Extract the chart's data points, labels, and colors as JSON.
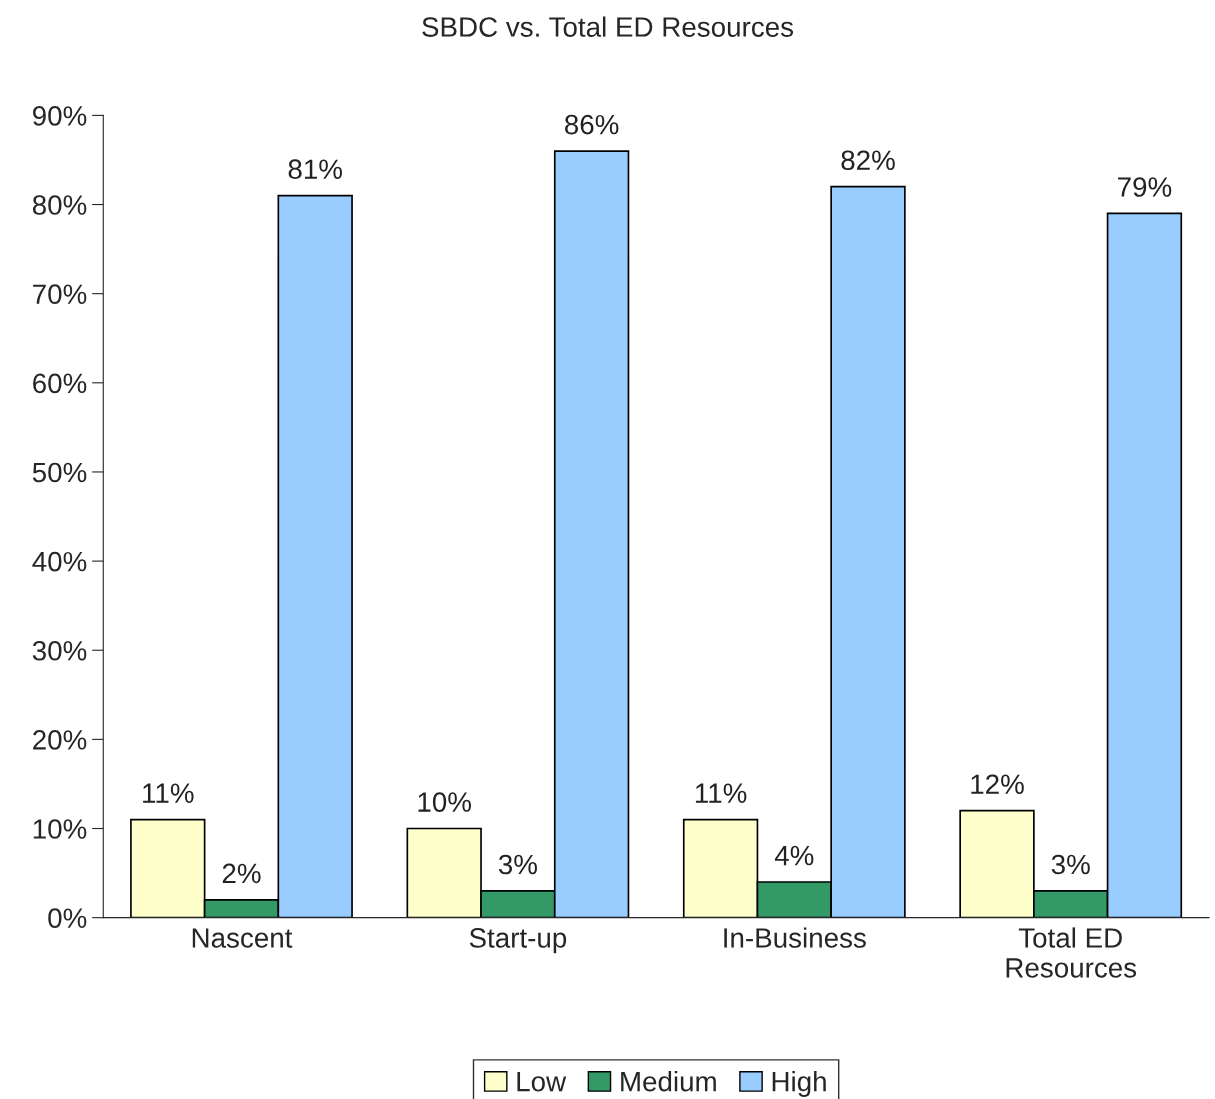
{
  "chart_data": {
    "type": "bar",
    "title": "SBDC vs. Total ED Resources",
    "categories": [
      "Nascent",
      "Start-up",
      "In-Business",
      "Total ED\nResources"
    ],
    "series": [
      {
        "name": "Low",
        "color": "#ffffcc",
        "values": [
          11,
          10,
          11,
          12
        ],
        "value_labels": [
          "11%",
          "10%",
          "11%",
          "12%"
        ]
      },
      {
        "name": "Medium",
        "color": "#339966",
        "values": [
          2,
          3,
          4,
          3
        ],
        "value_labels": [
          "2%",
          "3%",
          "4%",
          "3%"
        ]
      },
      {
        "name": "High",
        "color": "#99ccff",
        "values": [
          81,
          86,
          82,
          79
        ],
        "value_labels": [
          "81%",
          "86%",
          "82%",
          "79%"
        ]
      }
    ],
    "ylim": [
      0,
      90
    ],
    "yticks": [
      {
        "value": 0,
        "label": "0%"
      },
      {
        "value": 10,
        "label": "10%"
      },
      {
        "value": 20,
        "label": "20%"
      },
      {
        "value": 30,
        "label": "30%"
      },
      {
        "value": 40,
        "label": "40%"
      },
      {
        "value": 50,
        "label": "50%"
      },
      {
        "value": 60,
        "label": "60%"
      },
      {
        "value": 70,
        "label": "70%"
      },
      {
        "value": 80,
        "label": "80%"
      },
      {
        "value": 90,
        "label": "90%"
      }
    ],
    "grid": false,
    "legend": "bottom"
  }
}
